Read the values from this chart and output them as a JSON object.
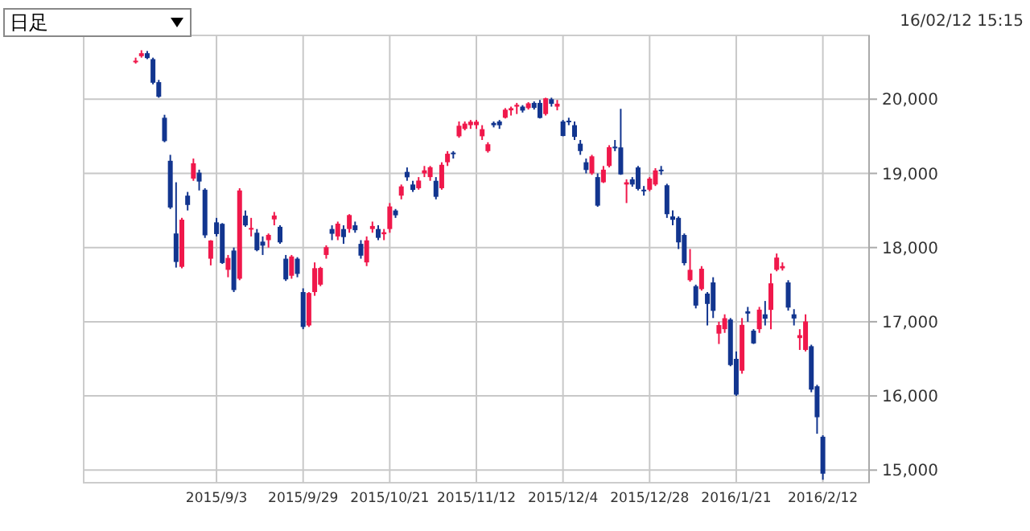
{
  "chart_data": {
    "type": "candlestick",
    "categories": [
      null,
      null,
      null,
      null,
      null,
      null,
      null,
      null,
      null,
      null,
      null,
      null,
      null,
      null,
      "2015/9/3",
      null,
      null,
      null,
      null,
      null,
      null,
      null,
      null,
      null,
      null,
      null,
      null,
      null,
      null,
      "2015/9/29",
      null,
      null,
      null,
      null,
      null,
      null,
      null,
      null,
      null,
      null,
      null,
      null,
      null,
      null,
      "2015/10/21",
      null,
      null,
      null,
      null,
      null,
      null,
      null,
      null,
      null,
      null,
      null,
      null,
      null,
      null,
      "2015/11/12",
      null,
      null,
      null,
      null,
      null,
      null,
      null,
      null,
      null,
      null,
      null,
      null,
      null,
      null,
      "2015/12/4",
      null,
      null,
      null,
      null,
      null,
      null,
      null,
      null,
      null,
      null,
      null,
      null,
      null,
      null,
      "2015/12/28",
      null,
      null,
      null,
      null,
      null,
      null,
      null,
      null,
      null,
      null,
      null,
      null,
      null,
      null,
      "2016/1/21",
      null,
      null,
      null,
      null,
      null,
      null,
      null,
      null,
      null,
      null,
      null,
      null,
      null,
      null,
      "2016/2/12"
    ],
    "ohlc": [
      [
        20500,
        20560,
        20480,
        20519
      ],
      [
        20580,
        20660,
        20560,
        20620
      ],
      [
        20620,
        20650,
        20540,
        20554
      ],
      [
        20540,
        20560,
        20200,
        20222
      ],
      [
        20230,
        20260,
        20020,
        20033
      ],
      [
        19750,
        19790,
        19420,
        19435
      ],
      [
        19170,
        19250,
        18520,
        18540
      ],
      [
        18190,
        18880,
        17730,
        17806
      ],
      [
        17740,
        18400,
        17720,
        18376
      ],
      [
        18700,
        18750,
        18500,
        18574
      ],
      [
        18930,
        19200,
        18900,
        19136
      ],
      [
        19010,
        19050,
        18770,
        18890
      ],
      [
        18780,
        18800,
        18130,
        18165
      ],
      [
        17850,
        18100,
        17760,
        18095
      ],
      [
        18340,
        18400,
        18150,
        18182
      ],
      [
        18320,
        18330,
        17780,
        17792
      ],
      [
        17700,
        17900,
        17600,
        17860
      ],
      [
        17960,
        18000,
        17400,
        17427
      ],
      [
        17580,
        18800,
        17560,
        18770
      ],
      [
        18430,
        18500,
        18280,
        18299
      ],
      [
        18250,
        18400,
        18150,
        18264
      ],
      [
        18200,
        18250,
        17950,
        17965
      ],
      [
        18080,
        18150,
        17900,
        18026
      ],
      [
        18100,
        18190,
        18000,
        18171
      ],
      [
        18380,
        18480,
        18300,
        18432
      ],
      [
        18280,
        18300,
        18050,
        18070
      ],
      [
        17850,
        17900,
        17550,
        17571
      ],
      [
        17620,
        17900,
        17580,
        17880
      ],
      [
        17850,
        17870,
        17600,
        17645
      ],
      [
        17400,
        17450,
        16900,
        16930
      ],
      [
        16950,
        17400,
        16930,
        17388
      ],
      [
        17400,
        17800,
        17350,
        17722
      ],
      [
        17500,
        17740,
        17480,
        17725
      ],
      [
        17900,
        18030,
        17850,
        18005
      ],
      [
        18250,
        18300,
        18100,
        18186
      ],
      [
        18150,
        18350,
        18100,
        18322
      ],
      [
        18250,
        18300,
        18050,
        18141
      ],
      [
        18250,
        18450,
        18200,
        18438
      ],
      [
        18300,
        18350,
        18200,
        18234
      ],
      [
        18050,
        18100,
        17850,
        17891
      ],
      [
        17800,
        18150,
        17750,
        18097
      ],
      [
        18250,
        18350,
        18200,
        18291
      ],
      [
        18250,
        18300,
        18100,
        18131
      ],
      [
        18180,
        18250,
        18100,
        18207
      ],
      [
        18250,
        18600,
        18200,
        18554
      ],
      [
        18500,
        18520,
        18400,
        18435
      ],
      [
        18700,
        18850,
        18650,
        18825
      ],
      [
        19020,
        19080,
        18900,
        18947
      ],
      [
        18850,
        18900,
        18750,
        18777
      ],
      [
        18800,
        18950,
        18780,
        18903
      ],
      [
        19000,
        19100,
        18950,
        19041
      ],
      [
        18950,
        19100,
        18900,
        19083
      ],
      [
        18900,
        18950,
        18650,
        18684
      ],
      [
        18800,
        19150,
        18780,
        19116
      ],
      [
        19150,
        19300,
        19100,
        19265
      ],
      [
        19280,
        19300,
        19200,
        19265
      ],
      [
        19500,
        19700,
        19480,
        19642
      ],
      [
        19600,
        19700,
        19580,
        19671
      ],
      [
        19650,
        19720,
        19600,
        19697
      ],
      [
        19650,
        19720,
        19600,
        19697
      ],
      [
        19500,
        19650,
        19450,
        19596
      ],
      [
        19300,
        19420,
        19280,
        19393
      ],
      [
        19680,
        19700,
        19620,
        19649
      ],
      [
        19700,
        19720,
        19600,
        19649
      ],
      [
        19750,
        19880,
        19740,
        19859
      ],
      [
        19850,
        19900,
        19780,
        19879
      ],
      [
        19900,
        19950,
        19800,
        19924
      ],
      [
        19900,
        19920,
        19820,
        19847
      ],
      [
        19880,
        19960,
        19860,
        19944
      ],
      [
        19950,
        19970,
        19860,
        19883
      ],
      [
        19950,
        19990,
        19740,
        19747
      ],
      [
        19800,
        20020,
        19780,
        20012
      ],
      [
        20000,
        20020,
        19900,
        19938
      ],
      [
        19900,
        19990,
        19850,
        19939
      ],
      [
        19700,
        19720,
        19500,
        19504
      ],
      [
        19710,
        19750,
        19650,
        19698
      ],
      [
        19650,
        19700,
        19450,
        19492
      ],
      [
        19400,
        19450,
        19250,
        19301
      ],
      [
        19150,
        19200,
        19000,
        19046
      ],
      [
        19000,
        19250,
        18980,
        19230
      ],
      [
        18950,
        19000,
        18550,
        18565
      ],
      [
        18880,
        19100,
        18870,
        19050
      ],
      [
        19100,
        19380,
        19080,
        19353
      ],
      [
        19360,
        19450,
        19300,
        19353
      ],
      [
        19350,
        19870,
        18980,
        18986
      ],
      [
        18850,
        18920,
        18600,
        18880
      ],
      [
        18920,
        18950,
        18820,
        18850
      ],
      [
        19080,
        19100,
        18770,
        18790
      ],
      [
        18780,
        18830,
        18700,
        18760
      ],
      [
        18780,
        18950,
        18760,
        18930
      ],
      [
        18850,
        19070,
        18830,
        19040
      ],
      [
        19050,
        19100,
        18980,
        19033
      ],
      [
        18840,
        18860,
        18400,
        18450
      ],
      [
        18420,
        18500,
        18300,
        18374
      ],
      [
        18400,
        18420,
        17980,
        18070
      ],
      [
        18170,
        18190,
        17760,
        17790
      ],
      [
        17560,
        17980,
        17540,
        17700
      ],
      [
        17480,
        17500,
        17180,
        17218
      ],
      [
        17440,
        17750,
        17420,
        17715
      ],
      [
        17380,
        17400,
        16950,
        17240
      ],
      [
        17530,
        17600,
        17050,
        17147
      ],
      [
        16840,
        17000,
        16700,
        16955
      ],
      [
        16900,
        17100,
        16850,
        17048
      ],
      [
        17030,
        17050,
        16400,
        16416
      ],
      [
        16500,
        16600,
        16000,
        16017
      ],
      [
        16340,
        17050,
        16300,
        16958
      ],
      [
        17140,
        17200,
        17000,
        17110
      ],
      [
        16880,
        16900,
        16700,
        16708
      ],
      [
        16900,
        17200,
        16850,
        17163
      ],
      [
        17100,
        17280,
        16950,
        17041
      ],
      [
        17160,
        17650,
        16900,
        17518
      ],
      [
        17700,
        17920,
        17680,
        17865
      ],
      [
        17720,
        17800,
        17690,
        17750
      ],
      [
        17530,
        17560,
        17150,
        17191
      ],
      [
        17100,
        17170,
        16950,
        17044
      ],
      [
        16780,
        16900,
        16620,
        16819
      ],
      [
        16620,
        17100,
        16600,
        17004
      ],
      [
        16670,
        16690,
        16050,
        16085
      ],
      [
        16130,
        16150,
        15490,
        15713
      ],
      [
        15450,
        15470,
        14870,
        14952
      ]
    ],
    "ylim": [
      14830,
      20860
    ],
    "yticks": [
      {
        "value": 15000,
        "label": "15,000"
      },
      {
        "value": 16000,
        "label": "16,000"
      },
      {
        "value": 17000,
        "label": "17,000"
      },
      {
        "value": 18000,
        "label": "18,000"
      },
      {
        "value": 19000,
        "label": "19,000"
      },
      {
        "value": 20000,
        "label": "20,000"
      }
    ],
    "grid": true,
    "annotations": [
      "日足",
      "16/02/12 15:15"
    ]
  }
}
